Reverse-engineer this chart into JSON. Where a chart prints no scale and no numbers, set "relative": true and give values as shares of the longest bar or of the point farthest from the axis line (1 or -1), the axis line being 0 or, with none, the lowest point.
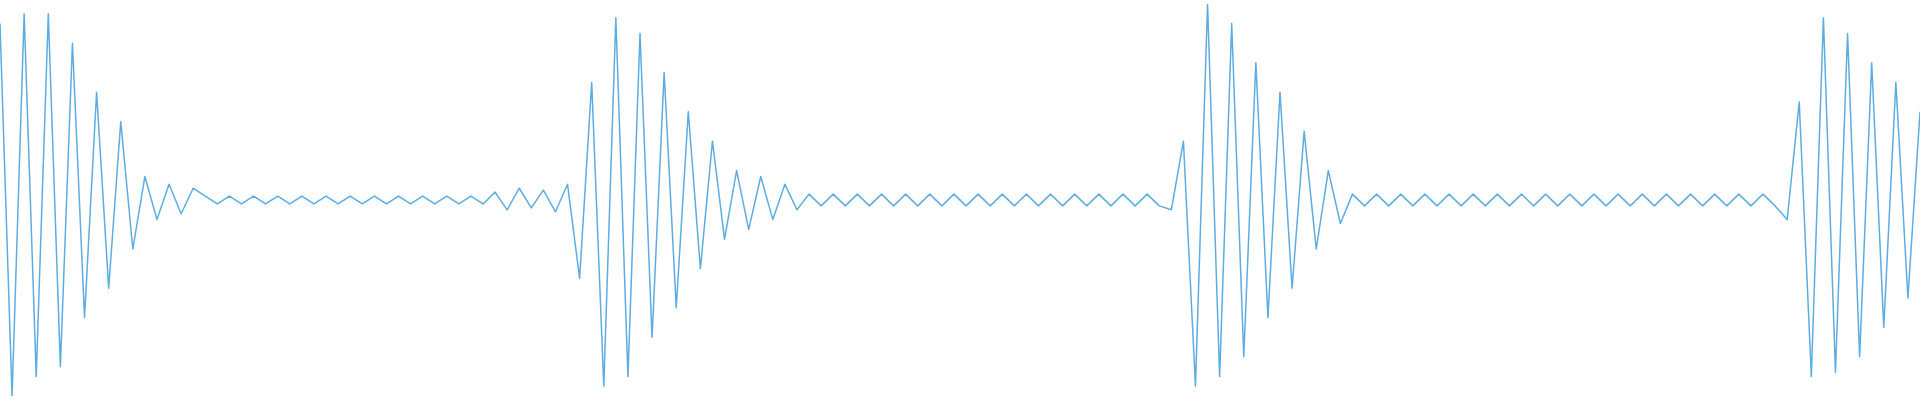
{
  "chart_data": {
    "type": "line",
    "relative": true,
    "color": "#5dade2",
    "marker": "none",
    "categories": [
      null,
      null,
      null,
      null,
      null,
      null,
      null,
      null,
      null,
      null,
      null,
      null,
      null,
      null,
      null,
      null,
      null,
      null,
      null,
      null,
      null,
      null,
      null,
      null,
      null,
      null,
      null,
      null,
      null,
      null,
      null,
      null,
      null,
      null,
      null,
      null,
      null,
      null,
      null,
      null,
      null,
      null,
      null,
      null,
      null,
      null,
      null,
      null,
      null,
      null,
      null,
      null,
      null,
      null,
      null,
      null,
      null,
      null,
      null,
      null,
      null,
      null,
      null,
      null,
      null,
      null,
      null,
      null,
      null,
      null,
      null,
      null,
      null,
      null,
      null,
      null,
      null,
      null,
      null,
      null,
      null,
      null,
      null,
      null,
      null,
      null,
      null,
      null,
      null,
      null,
      null,
      null,
      null,
      null,
      null,
      null,
      null,
      null,
      null,
      null,
      null,
      null,
      null,
      null,
      null,
      null,
      null,
      null,
      null,
      null,
      null,
      null,
      null,
      null,
      null,
      null,
      null,
      null,
      null,
      null,
      null,
      null,
      null,
      null,
      null,
      null,
      null,
      null,
      null,
      null,
      null,
      null,
      null,
      null,
      null,
      null,
      null,
      null,
      null,
      null,
      null,
      null,
      null,
      null,
      null,
      null,
      null,
      null,
      null,
      null,
      null,
      null,
      null,
      null,
      null,
      null,
      null,
      null,
      null,
      null
    ],
    "values": [
      0.95,
      0,
      0.975,
      0.05,
      0.975,
      0.075,
      0.9,
      0.2,
      0.775,
      0.275,
      0.7,
      0.375,
      0.56,
      0.45,
      0.54,
      0.465,
      0.53,
      0.51,
      0.49,
      0.51,
      0.49,
      0.51,
      0.49,
      0.51,
      0.49,
      0.51,
      0.49,
      0.51,
      0.49,
      0.51,
      0.49,
      0.51,
      0.49,
      0.51,
      0.49,
      0.51,
      0.49,
      0.51,
      0.49,
      0.51,
      0.49,
      0.52,
      0.475,
      0.53,
      0.48,
      0.525,
      0.47,
      0.54,
      0.3,
      0.8,
      0.025,
      0.965,
      0.05,
      0.925,
      0.15,
      0.825,
      0.225,
      0.725,
      0.325,
      0.65,
      0.4,
      0.575,
      0.425,
      0.56,
      0.45,
      0.54,
      0.475,
      0.515,
      0.485,
      0.515,
      0.485,
      0.515,
      0.485,
      0.515,
      0.485,
      0.515,
      0.485,
      0.515,
      0.485,
      0.515,
      0.485,
      0.515,
      0.485,
      0.515,
      0.485,
      0.515,
      0.485,
      0.515,
      0.485,
      0.515,
      0.485,
      0.515,
      0.485,
      0.515,
      0.485,
      0.515,
      0.485,
      0.475,
      0.65,
      0.025,
      1,
      0.05,
      0.95,
      0.1,
      0.85,
      0.2,
      0.775,
      0.275,
      0.675,
      0.375,
      0.575,
      0.44,
      0.515,
      0.485,
      0.515,
      0.485,
      0.515,
      0.485,
      0.515,
      0.485,
      0.515,
      0.485,
      0.515,
      0.485,
      0.515,
      0.485,
      0.515,
      0.485,
      0.515,
      0.485,
      0.515,
      0.485,
      0.515,
      0.485,
      0.515,
      0.485,
      0.515,
      0.485,
      0.515,
      0.485,
      0.515,
      0.485,
      0.515,
      0.485,
      0.515,
      0.485,
      0.515,
      0.485,
      0.45,
      0.75,
      0.05,
      0.965,
      0.06,
      0.925,
      0.1,
      0.85,
      0.175,
      0.8,
      0.25,
      0.725
    ]
  }
}
